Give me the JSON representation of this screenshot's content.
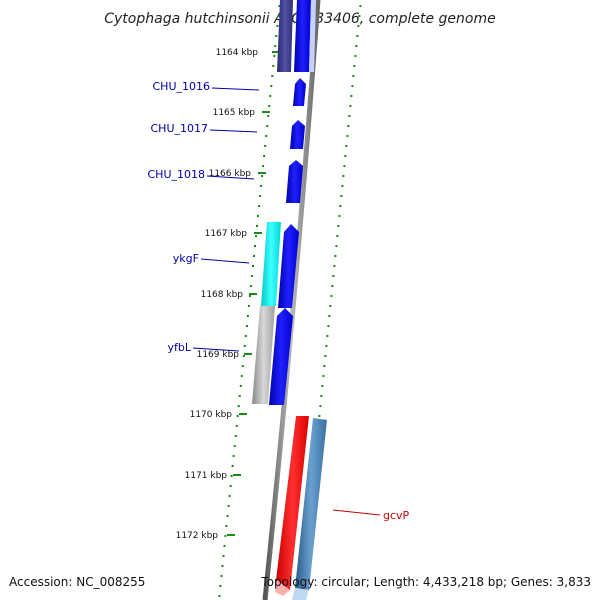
{
  "title": "Cytophaga hutchinsonii ATCC 33406, complete genome",
  "accession": "Accession: NC_008255",
  "topology": "Topology: circular; Length: 4,433,218 bp; Genes: 3,833",
  "ticks": [
    "1164 kbp",
    "1165 kbp",
    "1166 kbp",
    "1167 kbp",
    "1168 kbp",
    "1169 kbp",
    "1170 kbp",
    "1171 kbp",
    "1172 kbp"
  ],
  "gene_labels": [
    {
      "text": "CHU_1016",
      "color": "#0000aa"
    },
    {
      "text": "CHU_1017",
      "color": "#0000aa"
    },
    {
      "text": "CHU_1018",
      "color": "#0000aa"
    },
    {
      "text": "ykgF",
      "color": "#0000aa"
    },
    {
      "text": "yfbL",
      "color": "#0000aa"
    },
    {
      "text": "gcvP",
      "color": "#cc0000"
    }
  ],
  "colors": {
    "backbone": "#777777",
    "tick_dots": "#1a8a1a",
    "forward_gene": "#0000ee",
    "dark_gene": "#3a3a88",
    "cyan_gene": "#00e5e5",
    "gray_gene": "#a8a8a8",
    "red_gene": "#ff0000",
    "steel_gene": "#3a78aa"
  }
}
